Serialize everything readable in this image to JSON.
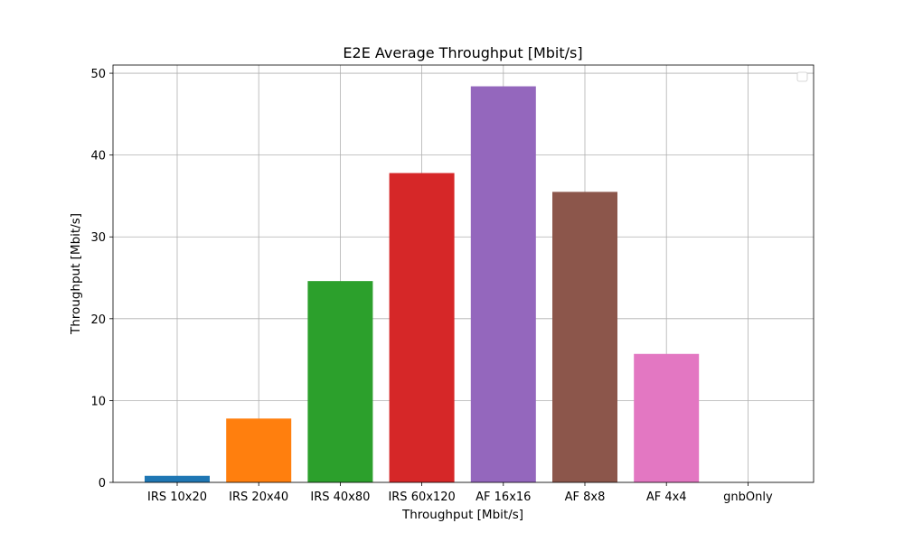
{
  "chart_data": {
    "type": "bar",
    "title": "E2E Average Throughput [Mbit/s]",
    "xlabel": "Throughput [Mbit/s]",
    "ylabel": "Throughput [Mbit/s]",
    "categories": [
      "IRS 10x20",
      "IRS 20x40",
      "IRS 40x80",
      "IRS 60x120",
      "AF 16x16",
      "AF 8x8",
      "AF 4x4",
      "gnbOnly"
    ],
    "values": [
      0.8,
      7.8,
      24.6,
      37.8,
      48.4,
      35.5,
      15.7,
      0
    ],
    "colors": [
      "#1f77b4",
      "#ff7f0e",
      "#2ca02c",
      "#d62728",
      "#9467bd",
      "#8c564b",
      "#e377c2",
      "#7f7f7f"
    ],
    "yticks": [
      0,
      10,
      20,
      30,
      40,
      50
    ],
    "ylim": [
      0,
      51
    ],
    "grid": true,
    "legend": {
      "position": "top-right",
      "entries": []
    }
  }
}
